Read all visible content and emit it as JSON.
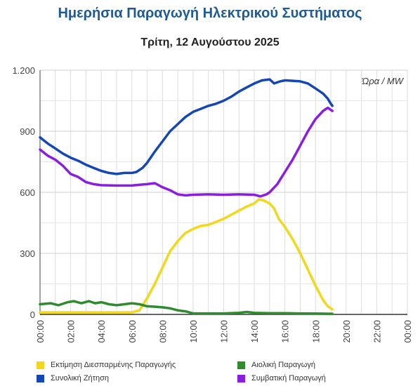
{
  "header": {
    "title": "Ημερήσια Παραγωγή Ηλεκτρικού Συστήματος",
    "subtitle": "Τρίτη, 12 Αυγούστου 2025"
  },
  "chart_data": {
    "type": "line",
    "title": "Ημερήσια Παραγωγή Ηλεκτρικού Συστήματος",
    "subtitle": "Τρίτη, 12 Αυγούστου 2025",
    "axis_note": "Ώρα / MW",
    "ylim": [
      0,
      1200
    ],
    "xlim": [
      0,
      24
    ],
    "yticks": [
      0,
      300,
      600,
      900,
      1200
    ],
    "ytick_labels": [
      "0",
      "300",
      "600",
      "900",
      "1.200"
    ],
    "xtick_labels": [
      "00:00",
      "02:00",
      "04:00",
      "06:00",
      "08:00",
      "10:00",
      "12:00",
      "14:00",
      "16:00",
      "18:00",
      "20:00",
      "22:00",
      "00:00"
    ],
    "grid": true,
    "legend_position": "bottom",
    "series": [
      {
        "name": "Εκτίμηση Διεσπαρμένης Παραγωγής",
        "color": "#f2d81c",
        "points": [
          [
            0,
            10
          ],
          [
            1,
            10
          ],
          [
            2,
            10
          ],
          [
            3,
            10
          ],
          [
            4,
            10
          ],
          [
            5,
            10
          ],
          [
            6,
            10
          ],
          [
            6.5,
            20
          ],
          [
            7,
            80
          ],
          [
            7.5,
            150
          ],
          [
            8,
            230
          ],
          [
            8.5,
            310
          ],
          [
            9,
            360
          ],
          [
            9.5,
            400
          ],
          [
            10,
            420
          ],
          [
            10.5,
            435
          ],
          [
            11,
            440
          ],
          [
            11.5,
            455
          ],
          [
            12,
            470
          ],
          [
            12.5,
            490
          ],
          [
            13,
            510
          ],
          [
            13.5,
            530
          ],
          [
            14,
            545
          ],
          [
            14.3,
            565
          ],
          [
            14.6,
            560
          ],
          [
            15,
            545
          ],
          [
            15.3,
            520
          ],
          [
            15.6,
            470
          ],
          [
            16,
            430
          ],
          [
            16.5,
            370
          ],
          [
            17,
            300
          ],
          [
            17.5,
            220
          ],
          [
            18,
            140
          ],
          [
            18.5,
            70
          ],
          [
            18.8,
            40
          ],
          [
            19.1,
            25
          ]
        ]
      },
      {
        "name": "Αιολική Παραγωγή",
        "color": "#2e8b2e",
        "points": [
          [
            0,
            50
          ],
          [
            0.7,
            55
          ],
          [
            1.2,
            45
          ],
          [
            1.8,
            60
          ],
          [
            2.2,
            65
          ],
          [
            2.7,
            55
          ],
          [
            3.2,
            65
          ],
          [
            3.6,
            55
          ],
          [
            4,
            60
          ],
          [
            4.5,
            50
          ],
          [
            5,
            45
          ],
          [
            5.5,
            50
          ],
          [
            6,
            55
          ],
          [
            6.5,
            50
          ],
          [
            7,
            40
          ],
          [
            7.5,
            38
          ],
          [
            8,
            35
          ],
          [
            8.5,
            30
          ],
          [
            9,
            20
          ],
          [
            9.5,
            15
          ],
          [
            10,
            5
          ],
          [
            11,
            5
          ],
          [
            12,
            5
          ],
          [
            13,
            8
          ],
          [
            13.5,
            12
          ],
          [
            14,
            8
          ],
          [
            15,
            6
          ],
          [
            16,
            6
          ],
          [
            17,
            5
          ],
          [
            18,
            4
          ],
          [
            19.1,
            3
          ]
        ]
      },
      {
        "name": "Συνολική Ζήτηση",
        "color": "#1447b4",
        "points": [
          [
            0,
            870
          ],
          [
            0.5,
            840
          ],
          [
            1,
            815
          ],
          [
            1.5,
            790
          ],
          [
            2,
            770
          ],
          [
            2.5,
            755
          ],
          [
            3,
            735
          ],
          [
            3.5,
            720
          ],
          [
            4,
            705
          ],
          [
            4.5,
            695
          ],
          [
            5,
            690
          ],
          [
            5.5,
            695
          ],
          [
            6,
            695
          ],
          [
            6.3,
            700
          ],
          [
            6.7,
            720
          ],
          [
            7,
            745
          ],
          [
            7.5,
            800
          ],
          [
            8,
            850
          ],
          [
            8.5,
            900
          ],
          [
            9,
            935
          ],
          [
            9.5,
            970
          ],
          [
            10,
            995
          ],
          [
            10.5,
            1010
          ],
          [
            11,
            1025
          ],
          [
            11.5,
            1035
          ],
          [
            12,
            1050
          ],
          [
            12.5,
            1070
          ],
          [
            13,
            1095
          ],
          [
            13.5,
            1115
          ],
          [
            14,
            1135
          ],
          [
            14.5,
            1150
          ],
          [
            15,
            1155
          ],
          [
            15.3,
            1135
          ],
          [
            15.7,
            1145
          ],
          [
            16,
            1150
          ],
          [
            16.5,
            1148
          ],
          [
            17,
            1145
          ],
          [
            17.5,
            1135
          ],
          [
            18,
            1110
          ],
          [
            18.5,
            1085
          ],
          [
            18.8,
            1060
          ],
          [
            19,
            1035
          ],
          [
            19.1,
            1025
          ]
        ]
      },
      {
        "name": "Συμβατική Παραγωγή",
        "color": "#8a1ee0",
        "points": [
          [
            0,
            810
          ],
          [
            0.5,
            780
          ],
          [
            1,
            760
          ],
          [
            1.5,
            730
          ],
          [
            2,
            690
          ],
          [
            2.5,
            675
          ],
          [
            3,
            650
          ],
          [
            3.5,
            640
          ],
          [
            4,
            635
          ],
          [
            5,
            633
          ],
          [
            6,
            633
          ],
          [
            6.5,
            637
          ],
          [
            7,
            640
          ],
          [
            7.5,
            645
          ],
          [
            8,
            625
          ],
          [
            8.5,
            610
          ],
          [
            9,
            590
          ],
          [
            9.5,
            585
          ],
          [
            10,
            588
          ],
          [
            11,
            590
          ],
          [
            12,
            588
          ],
          [
            13,
            590
          ],
          [
            14,
            588
          ],
          [
            14.4,
            580
          ],
          [
            14.8,
            590
          ],
          [
            15,
            600
          ],
          [
            15.5,
            640
          ],
          [
            16,
            700
          ],
          [
            16.5,
            760
          ],
          [
            17,
            830
          ],
          [
            17.5,
            900
          ],
          [
            18,
            960
          ],
          [
            18.5,
            1000
          ],
          [
            18.8,
            1015
          ],
          [
            19,
            1005
          ],
          [
            19.1,
            1000
          ]
        ]
      }
    ]
  }
}
